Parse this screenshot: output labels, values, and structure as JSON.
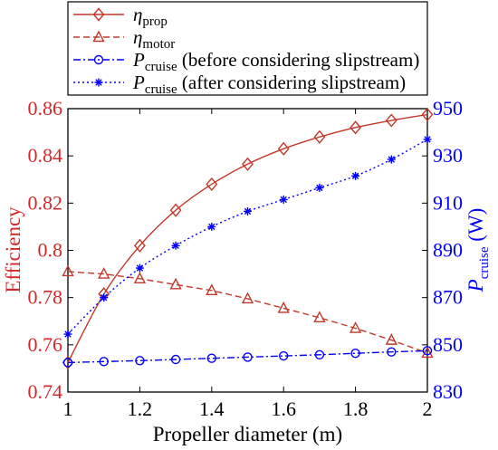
{
  "chart_data": {
    "type": "line",
    "x": [
      1,
      1.1,
      1.2,
      1.3,
      1.4,
      1.5,
      1.6,
      1.7,
      1.8,
      1.9,
      2
    ],
    "xlabel": "Propeller diameter (m)",
    "xlim": [
      1,
      2
    ],
    "x_ticks": [
      "1",
      "1.2",
      "1.4",
      "1.6",
      "1.8",
      "2"
    ],
    "y_left": {
      "label": "Efficiency",
      "lim": [
        0.74,
        0.86
      ],
      "ticks": [
        "0.74",
        "0.76",
        "0.78",
        "0.8",
        "0.82",
        "0.84",
        "0.86"
      ],
      "color": "#d62728"
    },
    "y_right": {
      "label_main": "P",
      "label_sub": "cruise",
      "label_tail": " (W)",
      "lim": [
        830,
        950
      ],
      "ticks": [
        "830",
        "850",
        "870",
        "890",
        "910",
        "930",
        "950"
      ],
      "color": "#0000ff"
    },
    "series": [
      {
        "name_main": "η",
        "name_sub": "prop",
        "name_tail": "",
        "axis": "left",
        "color": "#c0392b",
        "line": "solid",
        "marker": "diamond",
        "values": [
          0.7525,
          0.7815,
          0.802,
          0.817,
          0.828,
          0.8365,
          0.843,
          0.848,
          0.852,
          0.855,
          0.8575
        ]
      },
      {
        "name_main": "η",
        "name_sub": "motor",
        "name_tail": "",
        "axis": "left",
        "color": "#c0392b",
        "line": "dashed",
        "marker": "triangle",
        "values": [
          0.791,
          0.79,
          0.788,
          0.7855,
          0.783,
          0.7795,
          0.7755,
          0.7715,
          0.767,
          0.762,
          0.7565
        ]
      },
      {
        "name_main": "P",
        "name_sub": "cruise",
        "name_tail": " (before considering slipstream)",
        "axis": "right",
        "color": "#0000ff",
        "line": "dashdot",
        "marker": "circle",
        "values": [
          842.5,
          842.9,
          843.3,
          843.8,
          844.3,
          844.8,
          845.3,
          845.8,
          846.4,
          847.0,
          847.5
        ]
      },
      {
        "name_main": "P",
        "name_sub": "cruise",
        "name_tail": " (after considering slipstream)",
        "axis": "right",
        "color": "#0000ff",
        "line": "dotted",
        "marker": "star",
        "values": [
          854.5,
          870.0,
          882.5,
          892.0,
          900.0,
          906.5,
          911.5,
          916.5,
          921.5,
          928.5,
          937.0
        ]
      }
    ],
    "legend_position": "top-left",
    "grid": false
  }
}
